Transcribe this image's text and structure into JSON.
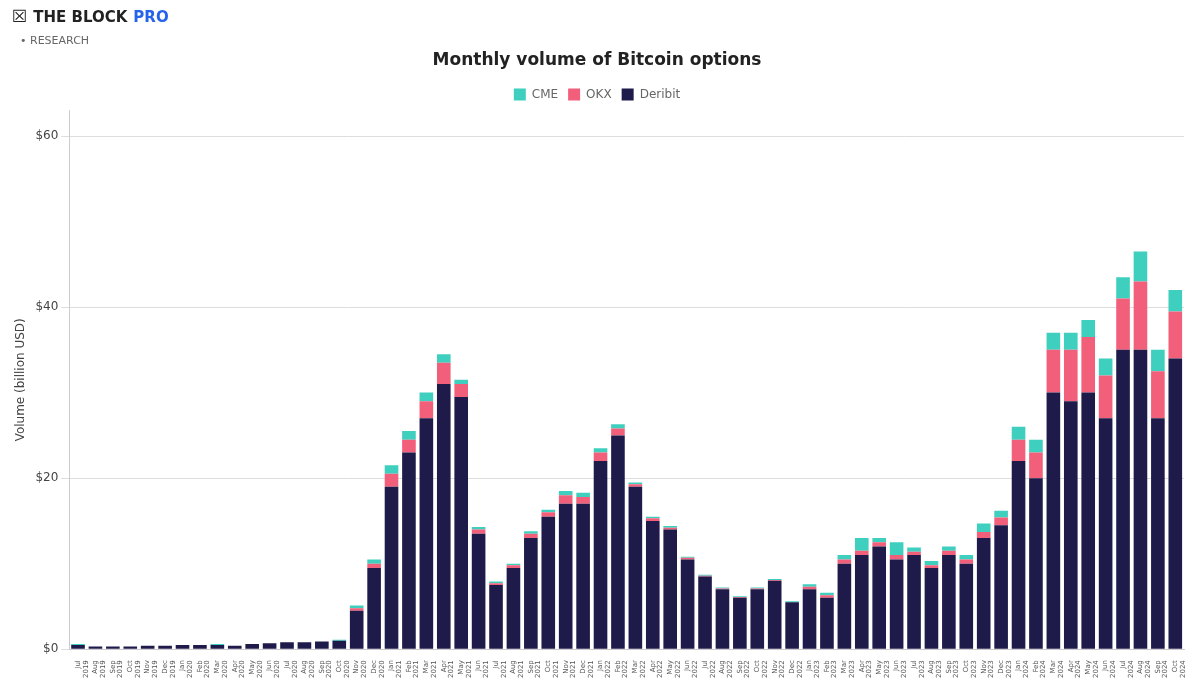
{
  "chart_data": {
    "type": "bar",
    "stacked": true,
    "title": "Monthly volume of Bitcoin options",
    "ylabel": "Volume (billion USD)",
    "annotations": [
      "☒",
      "THE BLOCK",
      "PRO",
      "• RESEARCH"
    ],
    "categories": [
      "Jul\n2019",
      "Aug\n2019",
      "Sep\n2019",
      "Oct\n2019",
      "Nov\n2019",
      "Dec\n2019",
      "Jan\n2020",
      "Feb\n2020",
      "Mar\n2020",
      "Apr\n2020",
      "May\n2020",
      "Jun\n2020",
      "Jul\n2020",
      "Aug\n2020",
      "Sep\n2020",
      "Oct\n2020",
      "Nov\n2020",
      "Dec\n2020",
      "Jan\n2021",
      "Feb\n2021",
      "Mar\n2021",
      "Apr\n2021",
      "May\n2021",
      "Jun\n2021",
      "Jul\n2021",
      "Aug\n2021",
      "Sep\n2021",
      "Oct\n2021",
      "Nov\n2021",
      "Dec\n2021",
      "Jan\n2022",
      "Feb\n2022",
      "Mar\n2022",
      "Apr\n2022",
      "May\n2022",
      "Jun\n2022",
      "Jul\n2022",
      "Aug\n2022",
      "Sep\n2022",
      "Oct\n2022",
      "Nov\n2022",
      "Dec\n2022",
      "Jan\n2023",
      "Feb\n2023",
      "Mar\n2023",
      "Apr\n2023",
      "May\n2023",
      "Jun\n2023",
      "Jul\n2023",
      "Aug\n2023",
      "Sep\n2023",
      "Oct\n2023",
      "Nov\n2023",
      "Dec\n2023",
      "Jan\n2024",
      "Feb\n2024",
      "Mar\n2024",
      "Apr\n2024",
      "May\n2024",
      "Jun\n2024",
      "Jul\n2024",
      "Aug\n2024",
      "Sep\n2024",
      "Oct\n2024"
    ],
    "series": [
      {
        "name": "Deribit",
        "color": "#1e1b4b",
        "values": [
          0.5,
          0.3,
          0.3,
          0.3,
          0.4,
          0.4,
          0.5,
          0.5,
          0.5,
          0.4,
          0.6,
          0.7,
          0.8,
          0.8,
          0.9,
          1.0,
          4.5,
          9.5,
          19.0,
          23.0,
          27.0,
          31.0,
          29.5,
          13.5,
          7.5,
          9.5,
          13.0,
          15.5,
          17.0,
          17.0,
          22.0,
          25.0,
          19.0,
          15.0,
          14.0,
          10.5,
          8.5,
          7.0,
          6.0,
          7.0,
          8.0,
          5.5,
          7.0,
          6.0,
          10.0,
          11.0,
          12.0,
          10.5,
          11.0,
          9.5,
          11.0,
          10.0,
          13.0,
          14.5,
          22.0,
          20.0,
          30.0,
          29.0,
          30.0,
          27.0,
          35.0,
          35.0,
          27.0,
          34.0
        ]
      },
      {
        "name": "OKX",
        "color": "#f25f7a",
        "values": [
          0.0,
          0.0,
          0.0,
          0.0,
          0.0,
          0.0,
          0.0,
          0.0,
          0.0,
          0.0,
          0.0,
          0.0,
          0.0,
          0.0,
          0.0,
          0.0,
          0.3,
          0.5,
          1.5,
          1.5,
          2.0,
          2.5,
          1.5,
          0.5,
          0.2,
          0.3,
          0.5,
          0.5,
          1.0,
          0.8,
          1.0,
          0.8,
          0.3,
          0.3,
          0.2,
          0.2,
          0.1,
          0.1,
          0.1,
          0.1,
          0.1,
          0.0,
          0.3,
          0.3,
          0.5,
          0.5,
          0.5,
          0.5,
          0.4,
          0.3,
          0.5,
          0.5,
          0.7,
          0.9,
          2.5,
          3.0,
          5.0,
          6.0,
          6.5,
          5.0,
          6.0,
          8.0,
          5.5,
          5.5
        ]
      },
      {
        "name": "CME",
        "color": "#3ecfbf",
        "values": [
          0.1,
          0.0,
          0.0,
          0.0,
          0.0,
          0.0,
          0.0,
          0.0,
          0.1,
          0.0,
          0.0,
          0.0,
          0.0,
          0.0,
          0.0,
          0.1,
          0.3,
          0.5,
          1.0,
          1.0,
          1.0,
          1.0,
          0.5,
          0.3,
          0.2,
          0.2,
          0.3,
          0.3,
          0.5,
          0.5,
          0.5,
          0.5,
          0.2,
          0.2,
          0.2,
          0.1,
          0.1,
          0.1,
          0.1,
          0.1,
          0.1,
          0.1,
          0.3,
          0.3,
          0.5,
          1.5,
          0.5,
          1.5,
          0.5,
          0.5,
          0.5,
          0.5,
          1.0,
          0.8,
          1.5,
          1.5,
          2.0,
          2.0,
          2.0,
          2.0,
          2.5,
          3.5,
          2.5,
          2.5
        ]
      }
    ],
    "ylim": [
      0,
      63
    ],
    "yticks": [
      {
        "value": 0,
        "label": "$0"
      },
      {
        "value": 20,
        "label": "$20"
      },
      {
        "value": 40,
        "label": "$40"
      },
      {
        "value": 60,
        "label": "$60"
      }
    ],
    "grid": true,
    "legend": "top"
  }
}
